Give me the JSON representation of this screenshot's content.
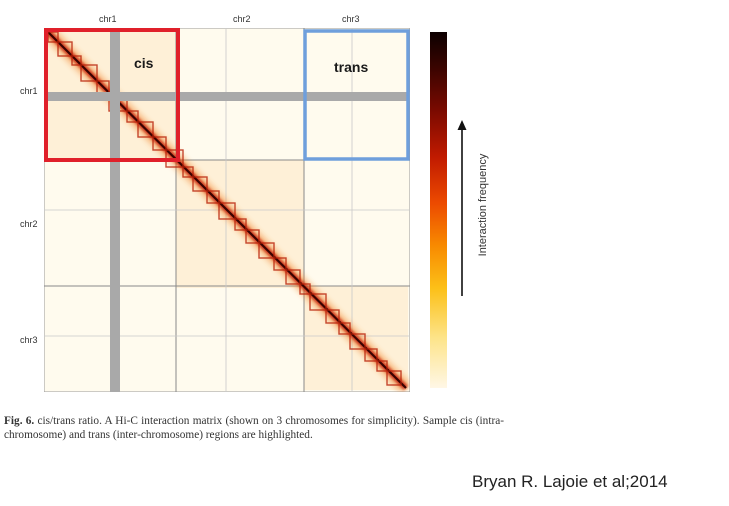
{
  "chromosomes": [
    "chr1",
    "chr2",
    "chr3"
  ],
  "regions": {
    "cis_label": "cis",
    "trans_label": "trans"
  },
  "colorbar": {
    "label": "Interaction frequency",
    "high_color": "#0c0000",
    "low_color": "#fff7e6"
  },
  "highlight_colors": {
    "cis": "#e0202a",
    "trans": "#6f9fdc"
  },
  "caption": {
    "fig_label": "Fig. 6.",
    "text": " cis/trans ratio. A Hi-C interaction matrix (shown on 3 chromosomes for simplicity). Sample cis (intra-chromosome) and trans (inter-chromosome) regions are highlighted."
  },
  "credit": "Bryan R. Lajoie et al;2014"
}
